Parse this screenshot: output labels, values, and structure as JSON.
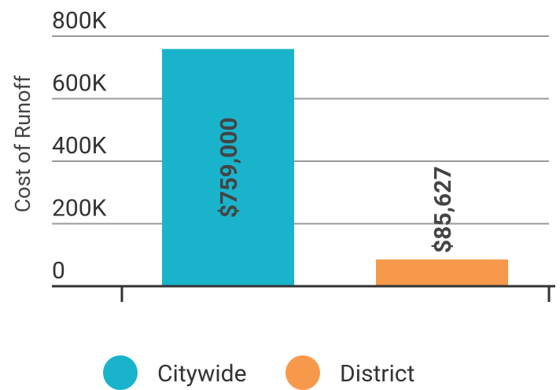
{
  "chart_data": {
    "type": "bar",
    "y_label": "Cost of Runoff",
    "categories": [
      "Citywide",
      "District"
    ],
    "values": [
      759000,
      85627
    ],
    "value_labels": [
      "$759,000",
      "$85,627"
    ],
    "colors": [
      "#1ab3cc",
      "#f7994a"
    ],
    "ylim": [
      0,
      800000
    ],
    "yticks": [
      0,
      {
        "value": 200000,
        "label": "200K"
      },
      {
        "value": 400000,
        "label": "400K"
      },
      {
        "value": 600000,
        "label": "600K"
      },
      {
        "value": 800000,
        "label": "800K"
      }
    ],
    "grid": true
  }
}
